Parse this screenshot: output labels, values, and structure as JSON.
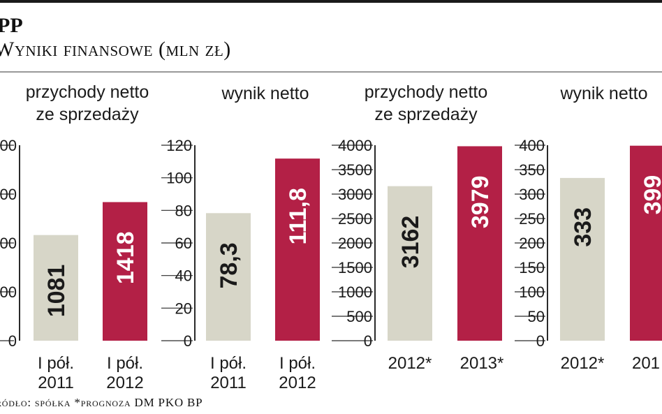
{
  "header": {
    "title": "PP",
    "subtitle": "Wyniki finansowe (mln zł)"
  },
  "footer": {
    "source": "ródło: spółka *prognoza DM PKO BP"
  },
  "colors": {
    "gray_bar": "#d7d6c8",
    "red_bar": "#b32046",
    "axis": "#2a2a2a",
    "text": "#1a1a1a"
  },
  "chart_data": [
    {
      "type": "bar",
      "title": "przychody netto ze sprzedaży",
      "categories": [
        "I pół. 2011",
        "I pół. 2012"
      ],
      "values": [
        1081,
        1418
      ],
      "value_labels": [
        "1081",
        "1418"
      ],
      "ylim": [
        0,
        2000
      ],
      "yticks": [
        "0",
        "00",
        "00",
        "00",
        "00"
      ],
      "bar_colors": [
        "#d7d6c8",
        "#b32046"
      ]
    },
    {
      "type": "bar",
      "title": "wynik netto",
      "categories": [
        "I pół. 2011",
        "I pół. 2012"
      ],
      "values": [
        78.3,
        111.8
      ],
      "value_labels": [
        "78,3",
        "111,8"
      ],
      "ylim": [
        0,
        120
      ],
      "yticks": [
        "0",
        "20",
        "40",
        "60",
        "80",
        "100",
        "120"
      ],
      "bar_colors": [
        "#d7d6c8",
        "#b32046"
      ]
    },
    {
      "type": "bar",
      "title": "przychody netto ze sprzedaży",
      "categories": [
        "2012*",
        "2013*"
      ],
      "values": [
        3162,
        3979
      ],
      "value_labels": [
        "3162",
        "3979"
      ],
      "ylim": [
        0,
        4000
      ],
      "yticks": [
        "0",
        "500",
        "1000",
        "1500",
        "2000",
        "2500",
        "3000",
        "3500",
        "4000"
      ],
      "bar_colors": [
        "#d7d6c8",
        "#b32046"
      ]
    },
    {
      "type": "bar",
      "title": "wynik netto",
      "categories": [
        "2012*",
        "201"
      ],
      "values": [
        333,
        399
      ],
      "value_labels": [
        "333",
        "399"
      ],
      "ylim": [
        0,
        400
      ],
      "yticks": [
        "0",
        "50",
        "100",
        "150",
        "200",
        "250",
        "300",
        "350",
        "400"
      ],
      "bar_colors": [
        "#d7d6c8",
        "#b32046"
      ]
    }
  ]
}
